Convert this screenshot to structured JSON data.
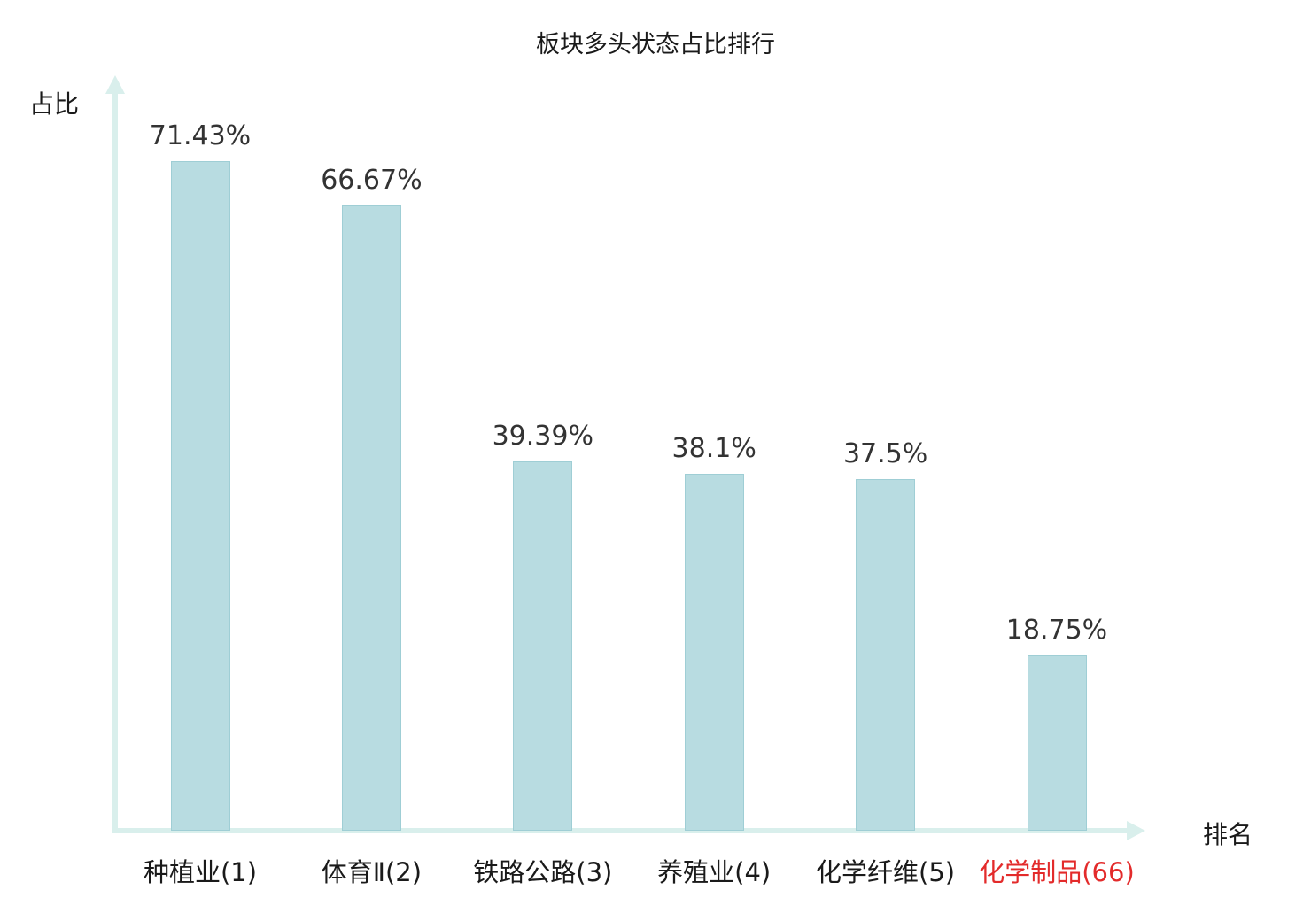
{
  "chart_data": {
    "type": "bar",
    "title": "板块多头状态占比排行",
    "xlabel": "排名",
    "ylabel": "占比",
    "categories": [
      "种植业(1)",
      "体育Ⅱ(2)",
      "铁路公路(3)",
      "养殖业(4)",
      "化学纤维(5)",
      "化学制品(66)"
    ],
    "values": [
      71.43,
      66.67,
      39.39,
      38.1,
      37.5,
      18.75
    ],
    "value_labels": [
      "71.43%",
      "66.67%",
      "39.39%",
      "38.1%",
      "37.5%",
      "18.75%"
    ],
    "highlight_index": 5,
    "ylim": [
      0,
      80
    ],
    "grid": false,
    "legend": null,
    "colors": {
      "bar_fill": "#b8dce1",
      "bar_border": "#9fced5",
      "axis": "#d9efec",
      "value_label": "#333333",
      "category_label": "#1a1a1a",
      "highlight_label": "#e32b2b"
    }
  }
}
